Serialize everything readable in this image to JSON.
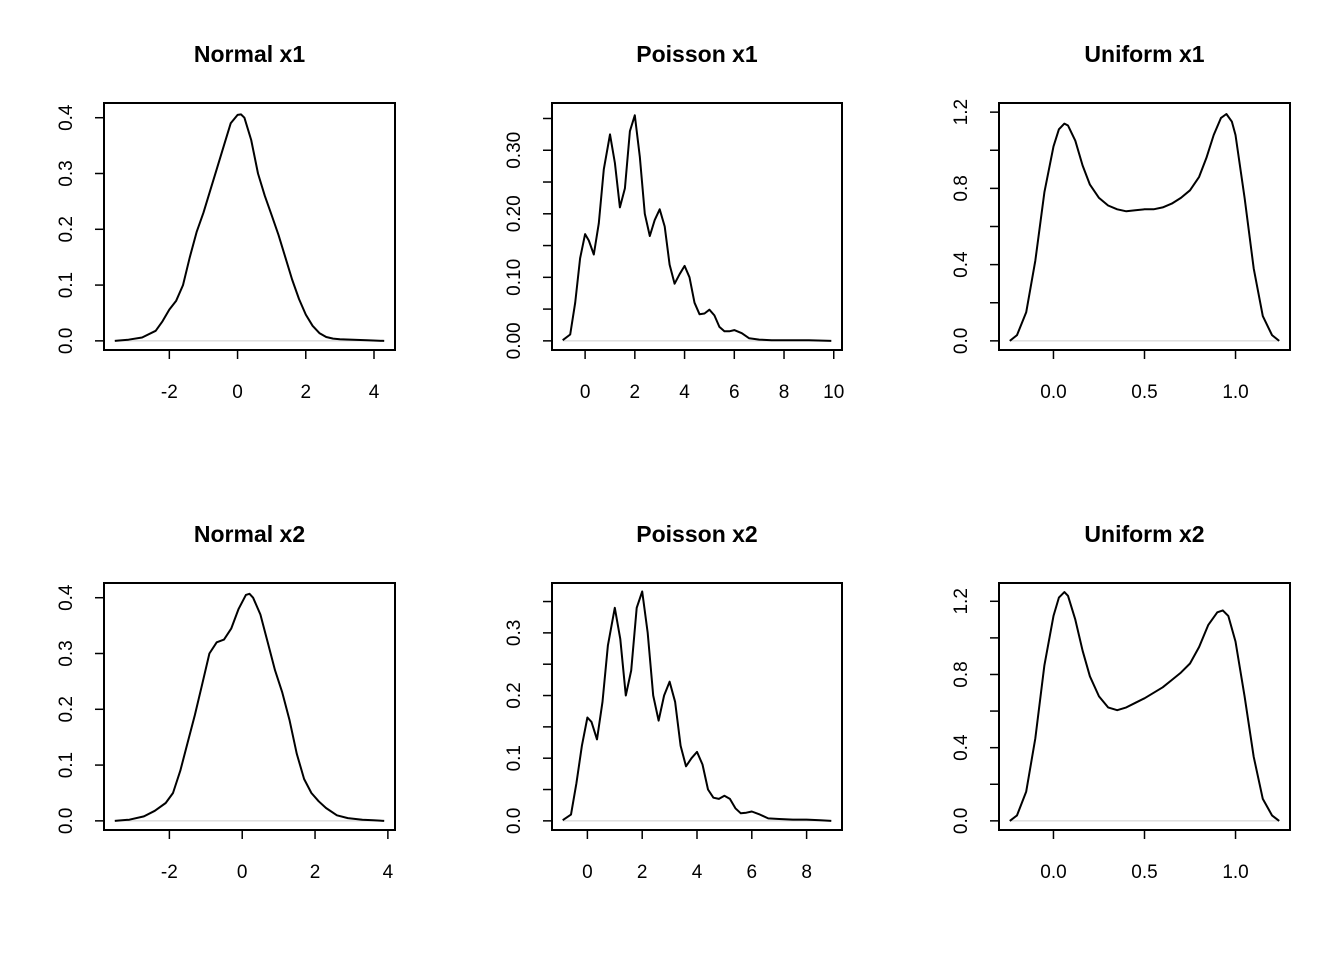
{
  "chart_data": [
    {
      "type": "line",
      "title": "Normal x1",
      "xlabel": "",
      "ylabel": "",
      "xlim": [
        -3.6,
        4.3
      ],
      "ylim": [
        0,
        0.41
      ],
      "xticks": [
        -2,
        0,
        2,
        4
      ],
      "xtick_labels": [
        "-2",
        "0",
        "2",
        "4"
      ],
      "yticks": [
        0,
        0.1,
        0.2,
        0.3,
        0.4
      ],
      "ytick_labels": [
        "0.0",
        "0.1",
        "0.2",
        "0.3",
        "0.4"
      ],
      "grid": false,
      "series": [
        {
          "x": [
            -3.6,
            -3.2,
            -2.8,
            -2.4,
            -2.2,
            -2.0,
            -1.8,
            -1.6,
            -1.4,
            -1.2,
            -1.0,
            -0.8,
            -0.6,
            -0.4,
            -0.2,
            0.0,
            0.1,
            0.2,
            0.4,
            0.6,
            0.8,
            1.0,
            1.2,
            1.4,
            1.6,
            1.8,
            2.0,
            2.2,
            2.4,
            2.6,
            2.8,
            3.0,
            3.4,
            3.8,
            4.3
          ],
          "y": [
            0.0,
            0.002,
            0.006,
            0.018,
            0.035,
            0.056,
            0.072,
            0.1,
            0.15,
            0.195,
            0.23,
            0.27,
            0.31,
            0.35,
            0.39,
            0.405,
            0.406,
            0.4,
            0.36,
            0.3,
            0.26,
            0.225,
            0.19,
            0.15,
            0.11,
            0.075,
            0.047,
            0.027,
            0.014,
            0.007,
            0.004,
            0.003,
            0.002,
            0.001,
            0.0
          ]
        }
      ]
    },
    {
      "type": "line",
      "title": "Poisson x1",
      "xlabel": "",
      "ylabel": "",
      "xlim": [
        -0.9,
        9.9
      ],
      "ylim": [
        0,
        0.36
      ],
      "xticks": [
        0,
        2,
        4,
        6,
        8,
        10
      ],
      "xtick_labels": [
        "0",
        "2",
        "4",
        "6",
        "8",
        "10"
      ],
      "yticks": [
        0,
        0.05,
        0.1,
        0.15,
        0.2,
        0.25,
        0.3,
        0.35
      ],
      "ytick_labels": [
        "0.00",
        "",
        "0.10",
        "",
        "0.20",
        "",
        "0.30",
        ""
      ],
      "grid": false,
      "series": [
        {
          "x": [
            -0.9,
            -0.6,
            -0.4,
            -0.2,
            0.0,
            0.15,
            0.35,
            0.55,
            0.75,
            1.0,
            1.2,
            1.4,
            1.6,
            1.8,
            2.0,
            2.2,
            2.4,
            2.6,
            2.8,
            3.0,
            3.2,
            3.4,
            3.6,
            3.8,
            4.0,
            4.2,
            4.4,
            4.6,
            4.8,
            5.0,
            5.2,
            5.4,
            5.6,
            5.8,
            6.0,
            6.3,
            6.6,
            7.0,
            7.5,
            8.0,
            9.0,
            9.9
          ],
          "y": [
            0.001,
            0.01,
            0.06,
            0.13,
            0.168,
            0.158,
            0.136,
            0.185,
            0.27,
            0.325,
            0.28,
            0.21,
            0.24,
            0.33,
            0.355,
            0.29,
            0.2,
            0.165,
            0.19,
            0.207,
            0.18,
            0.12,
            0.09,
            0.105,
            0.118,
            0.1,
            0.06,
            0.042,
            0.043,
            0.049,
            0.04,
            0.022,
            0.015,
            0.015,
            0.017,
            0.012,
            0.004,
            0.002,
            0.001,
            0.001,
            0.001,
            0.0
          ]
        }
      ]
    },
    {
      "type": "line",
      "title": "Uniform x1",
      "xlabel": "",
      "ylabel": "",
      "xlim": [
        -0.24,
        1.24
      ],
      "ylim": [
        0,
        1.2
      ],
      "xticks": [
        0,
        0.5,
        1
      ],
      "xtick_labels": [
        "0.0",
        "0.5",
        "1.0"
      ],
      "yticks": [
        0,
        0.2,
        0.4,
        0.6,
        0.8,
        1.0,
        1.2
      ],
      "ytick_labels": [
        "0.0",
        "",
        "0.4",
        "",
        "0.8",
        "",
        "1.2"
      ],
      "grid": false,
      "series": [
        {
          "x": [
            -0.24,
            -0.2,
            -0.15,
            -0.1,
            -0.05,
            0.0,
            0.03,
            0.06,
            0.08,
            0.12,
            0.16,
            0.2,
            0.25,
            0.3,
            0.35,
            0.4,
            0.45,
            0.5,
            0.55,
            0.6,
            0.65,
            0.7,
            0.75,
            0.8,
            0.84,
            0.88,
            0.92,
            0.95,
            0.98,
            1.0,
            1.05,
            1.1,
            1.15,
            1.2,
            1.24
          ],
          "y": [
            0.0,
            0.03,
            0.15,
            0.42,
            0.78,
            1.02,
            1.11,
            1.14,
            1.13,
            1.05,
            0.92,
            0.82,
            0.75,
            0.71,
            0.69,
            0.68,
            0.685,
            0.69,
            0.69,
            0.7,
            0.72,
            0.75,
            0.79,
            0.86,
            0.96,
            1.08,
            1.17,
            1.19,
            1.15,
            1.08,
            0.75,
            0.38,
            0.13,
            0.03,
            0.0
          ]
        }
      ]
    },
    {
      "type": "line",
      "title": "Normal x2",
      "xlabel": "",
      "ylabel": "",
      "xlim": [
        -3.5,
        3.9
      ],
      "ylim": [
        0,
        0.41
      ],
      "xticks": [
        -2,
        0,
        2,
        4
      ],
      "xtick_labels": [
        "-2",
        "0",
        "2",
        "4"
      ],
      "yticks": [
        0,
        0.1,
        0.2,
        0.3,
        0.4
      ],
      "ytick_labels": [
        "0.0",
        "0.1",
        "0.2",
        "0.3",
        "0.4"
      ],
      "grid": false,
      "series": [
        {
          "x": [
            -3.5,
            -3.1,
            -2.7,
            -2.4,
            -2.1,
            -1.9,
            -1.7,
            -1.5,
            -1.3,
            -1.1,
            -0.9,
            -0.7,
            -0.5,
            -0.3,
            -0.1,
            0.1,
            0.2,
            0.3,
            0.5,
            0.7,
            0.9,
            1.1,
            1.3,
            1.5,
            1.7,
            1.9,
            2.1,
            2.3,
            2.6,
            2.9,
            3.3,
            3.6,
            3.9
          ],
          "y": [
            0.0,
            0.002,
            0.008,
            0.018,
            0.032,
            0.05,
            0.09,
            0.14,
            0.19,
            0.245,
            0.3,
            0.32,
            0.325,
            0.345,
            0.38,
            0.405,
            0.407,
            0.4,
            0.37,
            0.32,
            0.27,
            0.23,
            0.18,
            0.12,
            0.075,
            0.05,
            0.035,
            0.023,
            0.01,
            0.005,
            0.002,
            0.001,
            0.0
          ]
        }
      ]
    },
    {
      "type": "line",
      "title": "Poisson x2",
      "xlabel": "",
      "ylabel": "",
      "xlim": [
        -0.9,
        8.9
      ],
      "ylim": [
        0,
        0.365
      ],
      "xticks": [
        0,
        2,
        4,
        6,
        8
      ],
      "xtick_labels": [
        "0",
        "2",
        "4",
        "6",
        "8"
      ],
      "yticks": [
        0,
        0.05,
        0.1,
        0.15,
        0.2,
        0.25,
        0.3,
        0.35
      ],
      "ytick_labels": [
        "0.0",
        "",
        "0.1",
        "",
        "0.2",
        "",
        "0.3",
        ""
      ],
      "grid": false,
      "series": [
        {
          "x": [
            -0.9,
            -0.6,
            -0.4,
            -0.2,
            0.0,
            0.15,
            0.35,
            0.55,
            0.75,
            1.0,
            1.2,
            1.4,
            1.6,
            1.8,
            2.0,
            2.2,
            2.4,
            2.6,
            2.8,
            3.0,
            3.2,
            3.4,
            3.6,
            3.8,
            4.0,
            4.2,
            4.4,
            4.6,
            4.8,
            5.0,
            5.2,
            5.4,
            5.6,
            5.8,
            6.0,
            6.3,
            6.6,
            7.0,
            7.5,
            8.0,
            8.5,
            8.9
          ],
          "y": [
            0.001,
            0.01,
            0.06,
            0.12,
            0.165,
            0.158,
            0.13,
            0.19,
            0.28,
            0.34,
            0.29,
            0.2,
            0.24,
            0.34,
            0.366,
            0.3,
            0.2,
            0.16,
            0.2,
            0.222,
            0.19,
            0.12,
            0.087,
            0.1,
            0.11,
            0.09,
            0.05,
            0.037,
            0.035,
            0.04,
            0.035,
            0.02,
            0.012,
            0.013,
            0.015,
            0.01,
            0.004,
            0.003,
            0.002,
            0.002,
            0.001,
            0.0
          ]
        }
      ]
    },
    {
      "type": "line",
      "title": "Uniform x2",
      "xlabel": "",
      "ylabel": "",
      "xlim": [
        -0.24,
        1.24
      ],
      "ylim": [
        0,
        1.25
      ],
      "xticks": [
        0,
        0.5,
        1
      ],
      "xtick_labels": [
        "0.0",
        "0.5",
        "1.0"
      ],
      "yticks": [
        0,
        0.2,
        0.4,
        0.6,
        0.8,
        1.0,
        1.2
      ],
      "ytick_labels": [
        "0.0",
        "",
        "0.4",
        "",
        "0.8",
        "",
        "1.2"
      ],
      "grid": false,
      "series": [
        {
          "x": [
            -0.24,
            -0.2,
            -0.15,
            -0.1,
            -0.05,
            0.0,
            0.03,
            0.06,
            0.08,
            0.12,
            0.16,
            0.2,
            0.25,
            0.3,
            0.35,
            0.4,
            0.45,
            0.5,
            0.55,
            0.6,
            0.65,
            0.7,
            0.75,
            0.8,
            0.85,
            0.9,
            0.93,
            0.96,
            1.0,
            1.05,
            1.1,
            1.15,
            1.2,
            1.24
          ],
          "y": [
            0.0,
            0.03,
            0.16,
            0.45,
            0.85,
            1.12,
            1.22,
            1.25,
            1.23,
            1.1,
            0.93,
            0.79,
            0.68,
            0.62,
            0.605,
            0.62,
            0.645,
            0.67,
            0.7,
            0.73,
            0.77,
            0.81,
            0.86,
            0.95,
            1.07,
            1.14,
            1.15,
            1.12,
            0.98,
            0.68,
            0.35,
            0.12,
            0.03,
            0.0
          ]
        }
      ]
    }
  ]
}
